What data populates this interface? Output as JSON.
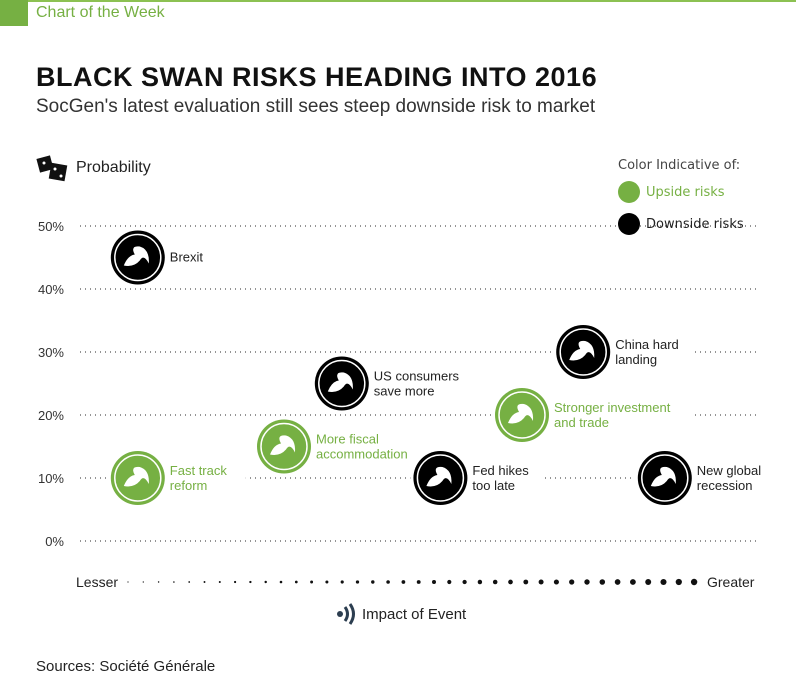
{
  "header": {
    "kicker": "Chart of the Week",
    "title": "BLACK SWAN RISKS HEADING INTO 2016",
    "subtitle": "SocGen's latest evaluation still sees steep downside risk to market"
  },
  "legend": {
    "title": "Color Indicative of:",
    "upside": "Upside risks",
    "downside": "Downside risks"
  },
  "colors": {
    "upside": "#76b043",
    "downside": "#000000"
  },
  "footer": {
    "sources": "Sources: Société Générale"
  },
  "chart_data": {
    "type": "scatter",
    "ylabel": "Probability",
    "xlabel": "Impact of Event",
    "x_low_label": "Lesser",
    "x_high_label": "Greater",
    "ylim": [
      0,
      50
    ],
    "xlim": [
      0,
      10
    ],
    "yticks": [
      "0%",
      "10%",
      "20%",
      "30%",
      "40%",
      "50%"
    ],
    "points": [
      {
        "label": [
          "Brexit"
        ],
        "impact": 0.85,
        "probability": 45,
        "type": "downside"
      },
      {
        "label": [
          "Fast track",
          "reform"
        ],
        "impact": 0.85,
        "probability": 10,
        "type": "upside"
      },
      {
        "label": [
          "More fiscal",
          "accommodation"
        ],
        "impact": 3.0,
        "probability": 15,
        "type": "upside"
      },
      {
        "label": [
          "US consumers",
          "save more"
        ],
        "impact": 3.85,
        "probability": 25,
        "type": "downside"
      },
      {
        "label": [
          "Fed hikes",
          "too late"
        ],
        "impact": 5.3,
        "probability": 10,
        "type": "downside"
      },
      {
        "label": [
          "Stronger investment",
          "and trade"
        ],
        "impact": 6.5,
        "probability": 20,
        "type": "upside"
      },
      {
        "label": [
          "China hard",
          "landing"
        ],
        "impact": 7.4,
        "probability": 30,
        "type": "downside"
      },
      {
        "label": [
          "New global",
          "recession"
        ],
        "impact": 8.6,
        "probability": 10,
        "type": "downside"
      }
    ]
  }
}
